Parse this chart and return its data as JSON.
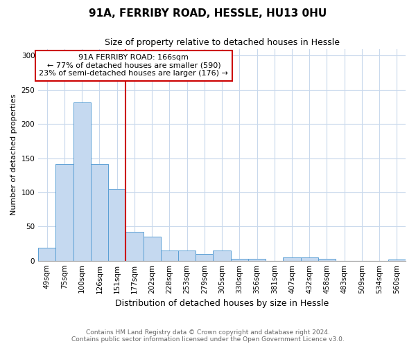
{
  "title1": "91A, FERRIBY ROAD, HESSLE, HU13 0HU",
  "title2": "Size of property relative to detached houses in Hessle",
  "xlabel": "Distribution of detached houses by size in Hessle",
  "ylabel": "Number of detached properties",
  "categories": [
    "49sqm",
    "75sqm",
    "100sqm",
    "126sqm",
    "151sqm",
    "177sqm",
    "202sqm",
    "228sqm",
    "253sqm",
    "279sqm",
    "305sqm",
    "330sqm",
    "356sqm",
    "381sqm",
    "407sqm",
    "432sqm",
    "458sqm",
    "483sqm",
    "509sqm",
    "534sqm",
    "560sqm"
  ],
  "values": [
    19,
    141,
    232,
    141,
    105,
    42,
    35,
    15,
    15,
    10,
    15,
    3,
    3,
    0,
    5,
    5,
    3,
    0,
    0,
    0,
    2
  ],
  "bar_color": "#c5d9f0",
  "bar_edge_color": "#5a9fd4",
  "vline_x_index": 5,
  "annotation_text_line1": "91A FERRIBY ROAD: 166sqm",
  "annotation_text_line2": "← 77% of detached houses are smaller (590)",
  "annotation_text_line3": "23% of semi-detached houses are larger (176) →",
  "vline_color": "#cc0000",
  "annotation_box_facecolor": "#ffffff",
  "annotation_box_edgecolor": "#cc0000",
  "footer_line1": "Contains HM Land Registry data © Crown copyright and database right 2024.",
  "footer_line2": "Contains public sector information licensed under the Open Government Licence v3.0.",
  "ylim": [
    0,
    310
  ],
  "background_color": "#ffffff",
  "grid_color": "#c8d8ec",
  "title1_fontsize": 11,
  "title2_fontsize": 9,
  "ylabel_fontsize": 8,
  "xlabel_fontsize": 9,
  "tick_fontsize": 7.5,
  "annotation_fontsize": 8,
  "footer_fontsize": 6.5
}
